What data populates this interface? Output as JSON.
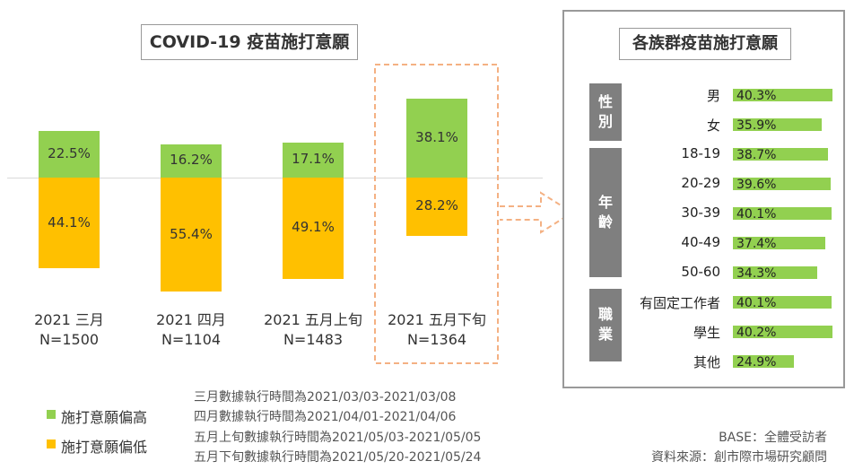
{
  "colors": {
    "high": "#92d050",
    "low": "#ffc000",
    "highlight": "#f4b183",
    "group_bg": "#7f7f7f"
  },
  "chart_data": [
    {
      "type": "bar",
      "title": "COVID-19 疫苗施打意願",
      "categories": [
        "2021 三月",
        "2021 四月",
        "2021 五月上旬",
        "2021 五月下旬"
      ],
      "sample_sizes": [
        "N=1500",
        "N=1104",
        "N=1483",
        "N=1364"
      ],
      "series": [
        {
          "name": "施打意願偏高",
          "values": [
            22.5,
            16.2,
            17.1,
            38.1
          ],
          "labels": [
            "22.5%",
            "16.2%",
            "17.1%",
            "38.1%"
          ]
        },
        {
          "name": "施打意願偏低",
          "values": [
            44.1,
            55.4,
            49.1,
            28.2
          ],
          "labels": [
            "44.1%",
            "55.4%",
            "49.1%",
            "28.2%"
          ]
        }
      ],
      "highlighted_category": "2021 五月下旬"
    },
    {
      "type": "bar",
      "orientation": "horizontal",
      "title": "各族群疫苗施打意願",
      "groups": [
        {
          "name": "性別",
          "rows": [
            0,
            1
          ]
        },
        {
          "name": "年齡",
          "rows": [
            2,
            3,
            4,
            5,
            6
          ]
        },
        {
          "name": "職業",
          "rows": [
            7,
            8,
            9
          ]
        }
      ],
      "categories": [
        "男",
        "女",
        "18-19",
        "20-29",
        "30-39",
        "40-49",
        "50-60",
        "有固定工作者",
        "學生",
        "其他"
      ],
      "values": [
        40.3,
        35.9,
        38.7,
        39.6,
        40.1,
        37.4,
        34.3,
        40.1,
        40.2,
        24.9
      ],
      "labels": [
        "40.3%",
        "35.9%",
        "38.7%",
        "39.6%",
        "40.1%",
        "37.4%",
        "34.3%",
        "40.1%",
        "40.2%",
        "24.9%"
      ]
    }
  ],
  "legend": [
    {
      "label": "施打意願偏高",
      "color": "#92d050"
    },
    {
      "label": "施打意願偏低",
      "color": "#ffc000"
    }
  ],
  "notes": [
    "三月數據執行時間為2021/03/03-2021/03/08",
    "四月數據執行時間為2021/04/01-2021/04/06",
    "五月上旬數據執行時間為2021/05/03-2021/05/05",
    "五月下旬數據執行時間為2021/05/20-2021/05/24"
  ],
  "base": "BASE：全體受訪者",
  "source": "資料來源：創市際市場研究顧問"
}
